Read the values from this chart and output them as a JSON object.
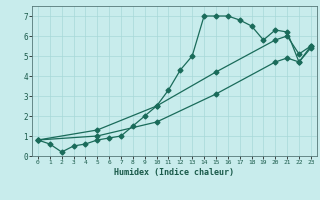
{
  "xlabel": "Humidex (Indice chaleur)",
  "bg_color": "#c8ecec",
  "grid_color": "#a8d8d8",
  "line_color": "#1a6b5a",
  "xlim": [
    -0.5,
    23.5
  ],
  "ylim": [
    0,
    7.5
  ],
  "xticks": [
    0,
    1,
    2,
    3,
    4,
    5,
    6,
    7,
    8,
    9,
    10,
    11,
    12,
    13,
    14,
    15,
    16,
    17,
    18,
    19,
    20,
    21,
    22,
    23
  ],
  "yticks": [
    0,
    1,
    2,
    3,
    4,
    5,
    6,
    7
  ],
  "line1_x": [
    0,
    1,
    2,
    3,
    4,
    5,
    6,
    7,
    8,
    9,
    10,
    11,
    12,
    13,
    14,
    15,
    16,
    17,
    18,
    19,
    20,
    21,
    22,
    23
  ],
  "line1_y": [
    0.8,
    0.6,
    0.2,
    0.5,
    0.6,
    0.8,
    0.9,
    1.0,
    1.5,
    2.0,
    2.5,
    3.3,
    4.3,
    5.0,
    7.0,
    7.0,
    7.0,
    6.8,
    6.5,
    5.8,
    6.3,
    6.2,
    4.7,
    5.4
  ],
  "line2_x": [
    0,
    5,
    10,
    15,
    20,
    21,
    22,
    23
  ],
  "line2_y": [
    0.8,
    1.3,
    2.5,
    4.2,
    5.8,
    6.0,
    5.1,
    5.5
  ],
  "line3_x": [
    0,
    5,
    10,
    15,
    20,
    21,
    22,
    23
  ],
  "line3_y": [
    0.8,
    1.0,
    1.7,
    3.1,
    4.7,
    4.9,
    4.7,
    5.5
  ]
}
